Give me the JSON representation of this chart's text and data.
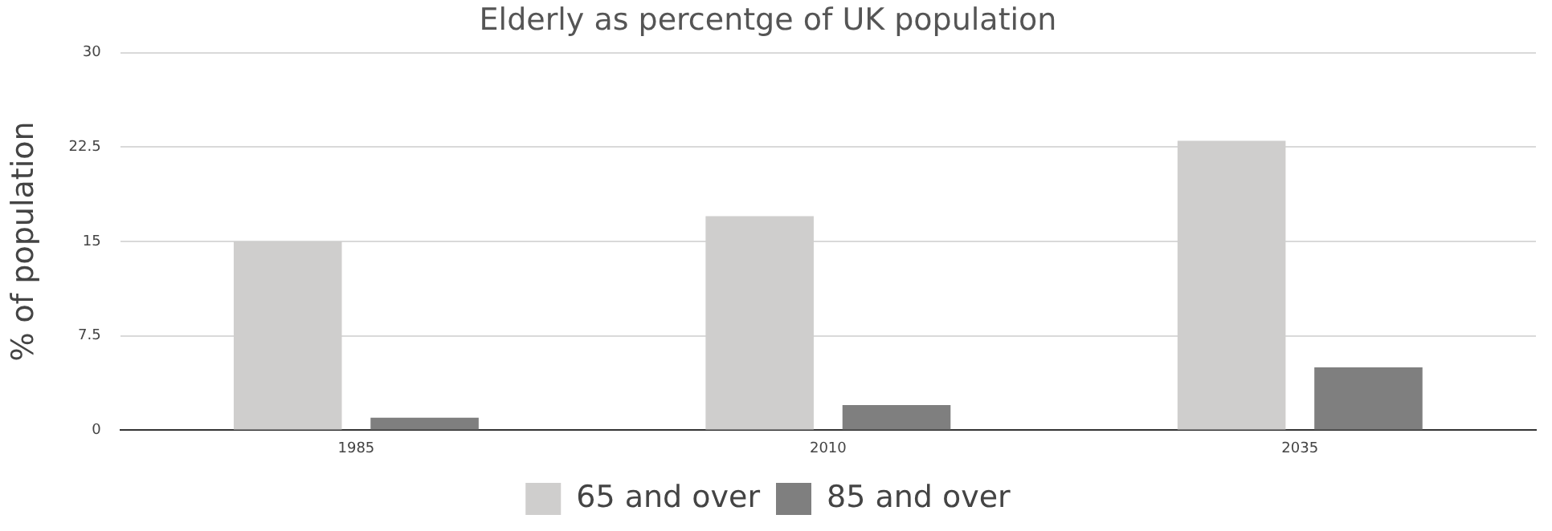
{
  "chart_data": {
    "type": "bar",
    "title": "Elderly as percentge of UK population",
    "ylabel": "% of population",
    "categories": [
      "1985",
      "2010",
      "2035"
    ],
    "series": [
      {
        "name": "65 and over",
        "color": "#cfcecd",
        "values": [
          15,
          17,
          23
        ]
      },
      {
        "name": "85 and over",
        "color": "#7f7f7f",
        "values": [
          1,
          2,
          5
        ]
      }
    ],
    "ylim": [
      0,
      30
    ],
    "yticks": [
      0,
      7.5,
      15,
      22.5,
      30
    ],
    "grid": "y",
    "legend": "bottom"
  }
}
